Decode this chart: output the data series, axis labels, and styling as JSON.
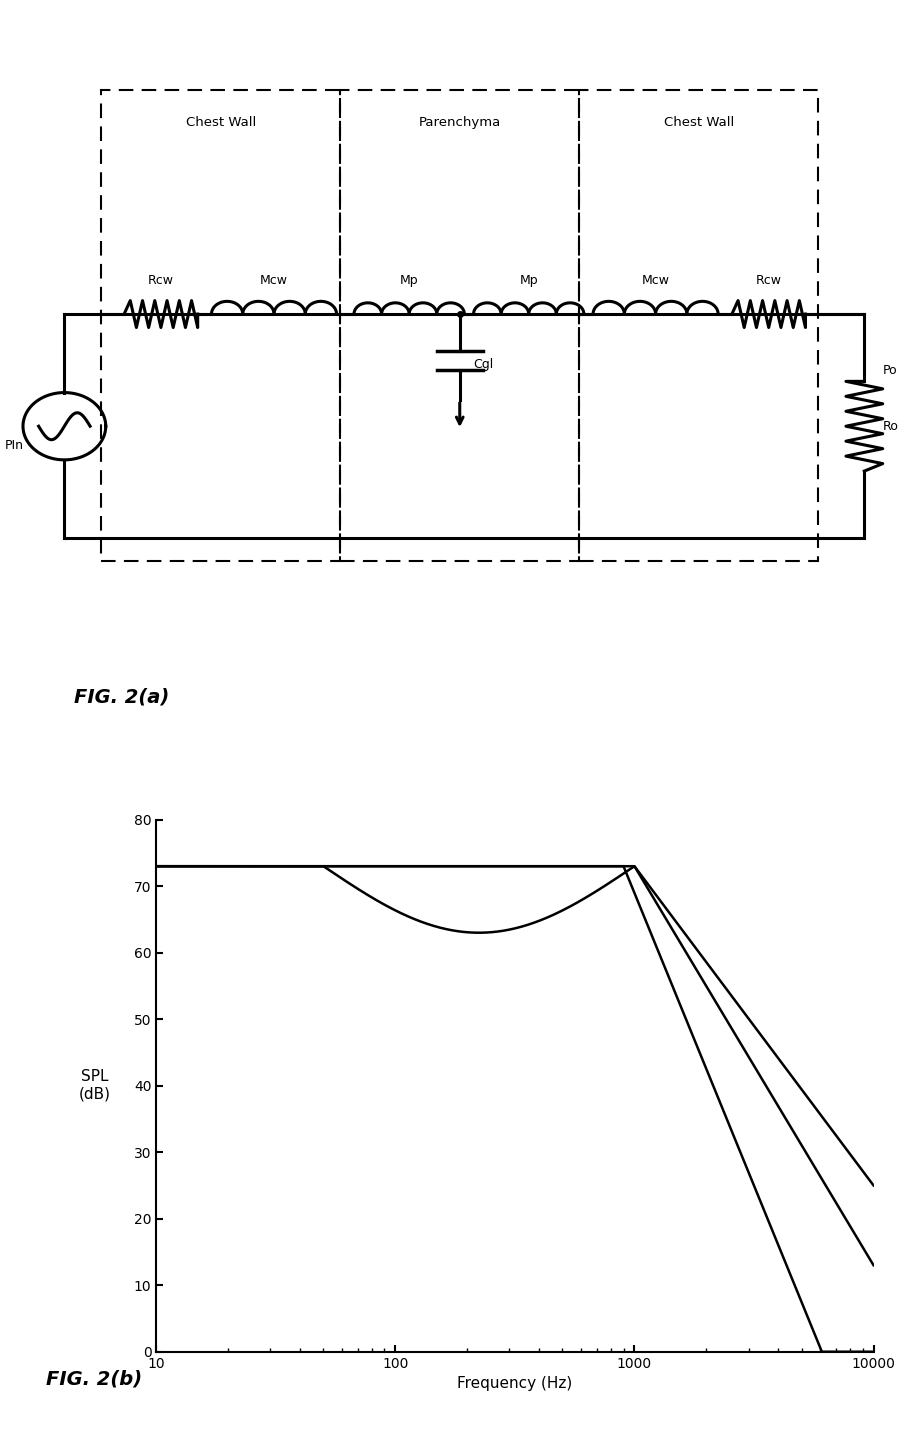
{
  "fig_width": 9.195,
  "fig_height": 14.38,
  "background_color": "#ffffff",
  "circuit_label": "FIG. 2(a)",
  "plot_label": "FIG. 2(b)",
  "ylabel_line1": "SPL",
  "ylabel_line2": "(dB)",
  "xlabel": "Frequency (Hz)",
  "ylim": [
    0,
    80
  ],
  "yticks": [
    0,
    10,
    20,
    30,
    40,
    50,
    60,
    70,
    80
  ],
  "xlim_log": [
    10,
    10000
  ],
  "xticks_log": [
    10,
    100,
    1000,
    10000
  ],
  "xtick_labels": [
    "10",
    "100",
    "1000",
    "10000"
  ]
}
